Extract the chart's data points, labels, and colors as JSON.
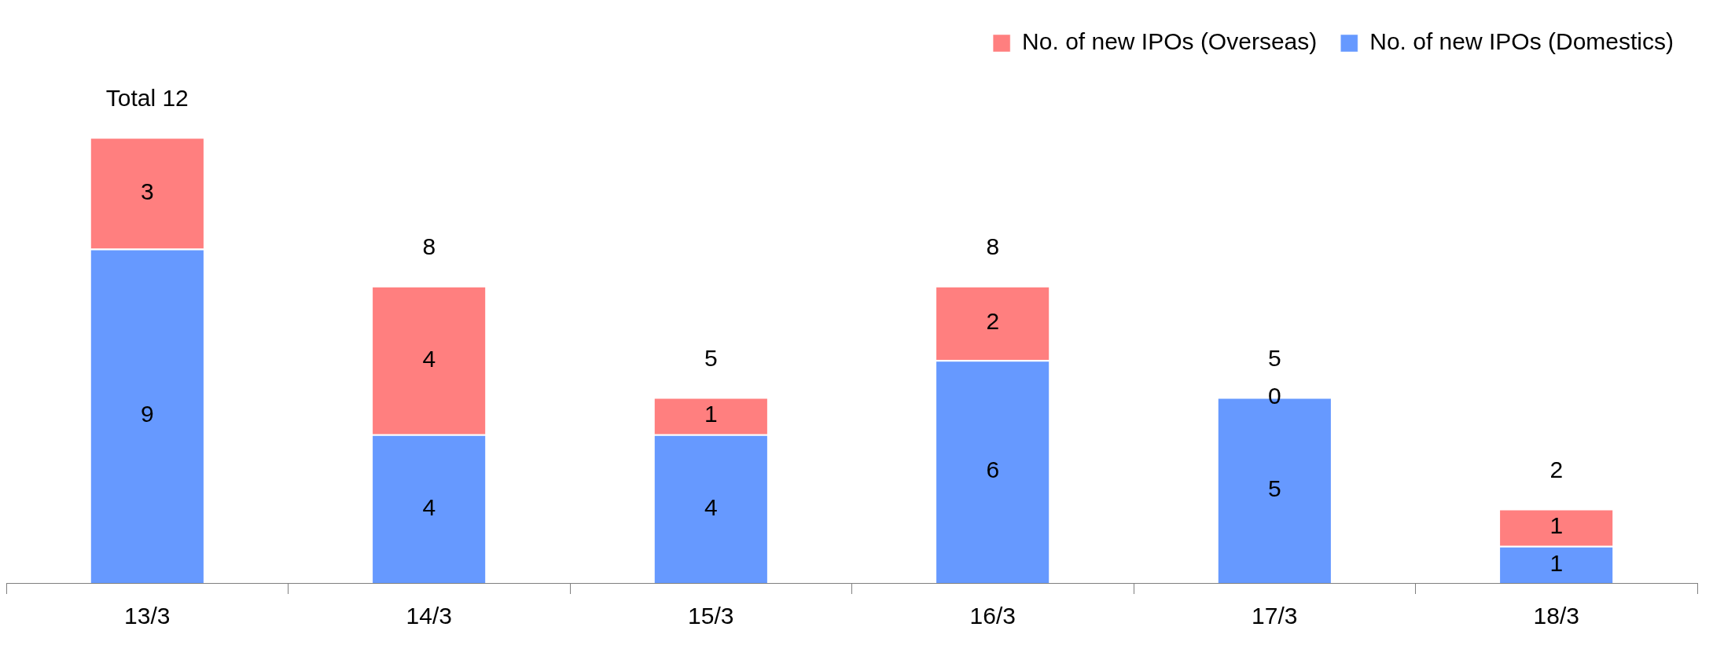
{
  "chart_data": {
    "type": "bar",
    "stacked": true,
    "categories": [
      "13/3",
      "14/3",
      "15/3",
      "16/3",
      "17/3",
      "18/3"
    ],
    "series": [
      {
        "name": "No. of new IPOs (Domestics)",
        "color": "#6699ff",
        "values": [
          9,
          4,
          4,
          6,
          5,
          1
        ]
      },
      {
        "name": "No. of new IPOs (Overseas)",
        "color": "#ff7f7f",
        "values": [
          3,
          4,
          1,
          2,
          0,
          1
        ]
      }
    ],
    "data_labels": true,
    "totals": [
      "Total 12",
      "8",
      "5",
      "8",
      "5",
      "2"
    ],
    "legend": "top right",
    "tick_labels": "x"
  }
}
